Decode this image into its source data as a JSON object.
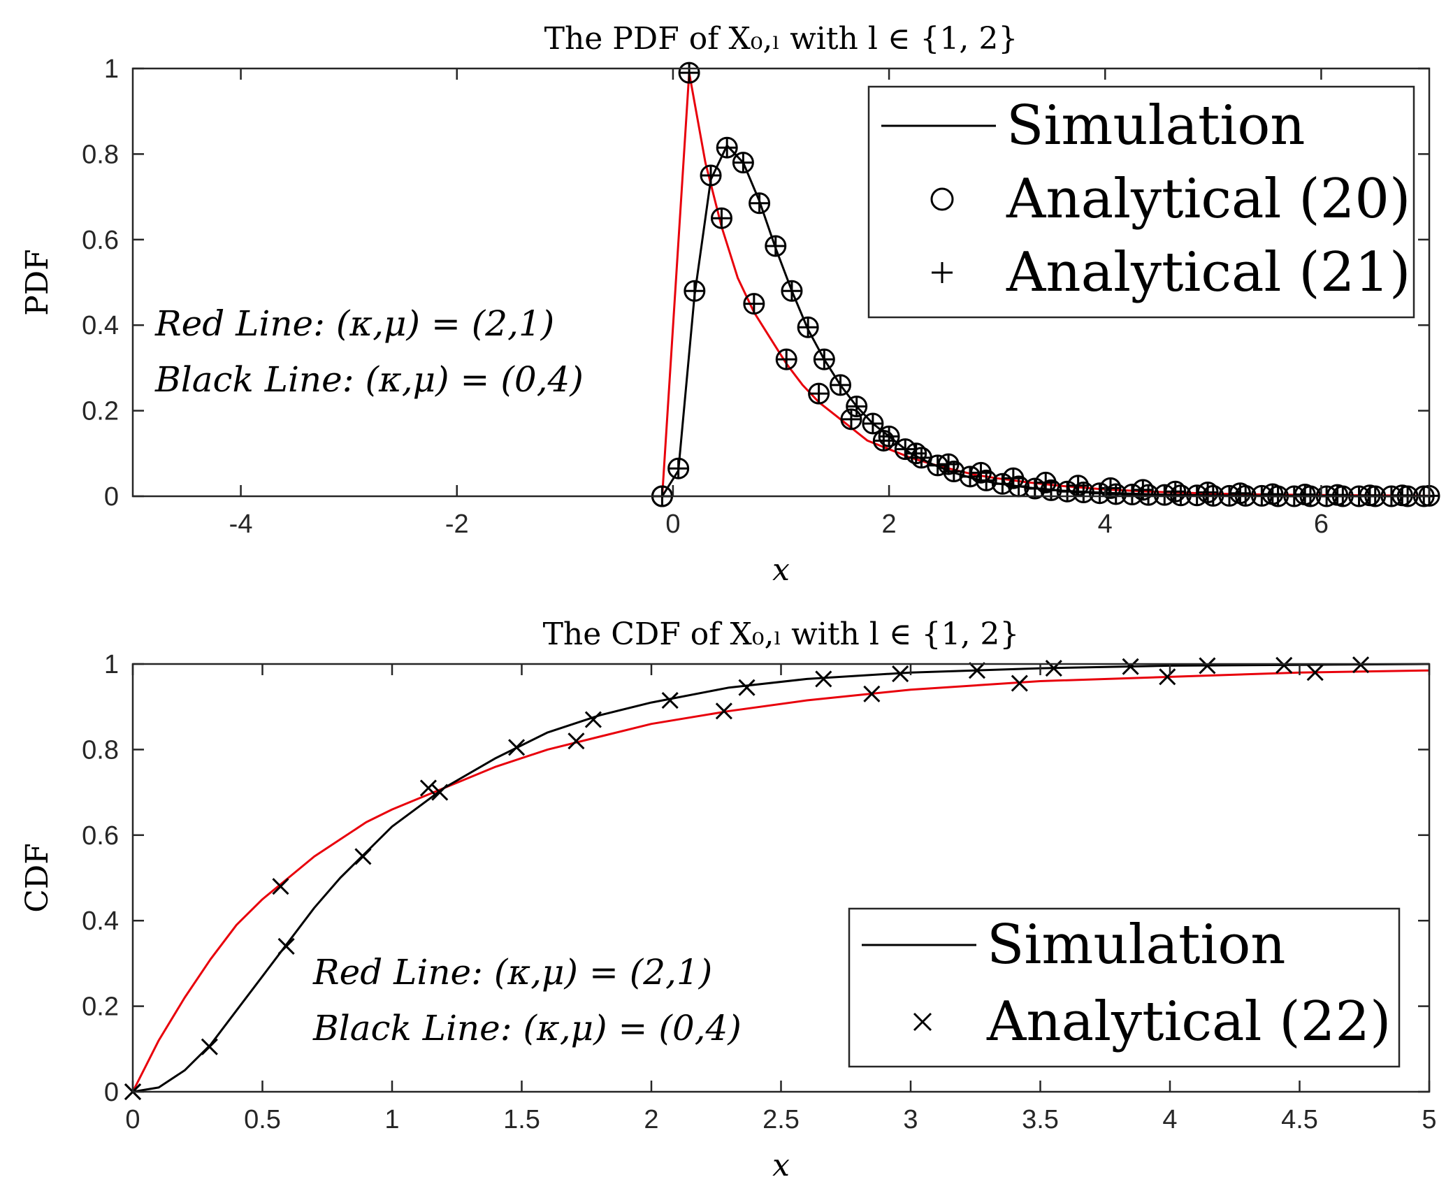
{
  "colors": {
    "red": "#e8000b",
    "black": "#000000",
    "background": "#ffffff"
  },
  "chart_data": [
    {
      "type": "line",
      "title": "The PDF of X₀,ₗ with l ∈ {1, 2}",
      "xlabel": "x",
      "ylabel": "PDF",
      "xlim": [
        -5,
        7
      ],
      "ylim": [
        0,
        1
      ],
      "xticks": [
        -4,
        -2,
        0,
        2,
        4,
        6
      ],
      "xtick_labels": [
        "-4",
        "-2",
        "0",
        "2",
        "4",
        "6"
      ],
      "yticks": [
        0,
        0.2,
        0.4,
        0.6,
        0.8,
        1
      ],
      "ytick_labels": [
        "0",
        "0.2",
        "0.4",
        "0.6",
        "0.8",
        "1"
      ],
      "legend": {
        "placement": "top-right",
        "entries": [
          {
            "label": "Simulation",
            "marker": "line"
          },
          {
            "label": "Analytical (20)",
            "marker": "circle"
          },
          {
            "label": "Analytical (21)",
            "marker": "plus"
          }
        ]
      },
      "annotations": [
        "Red Line: (κ,μ) = (2,1)",
        "Black Line: (κ,μ) = (0,4)"
      ],
      "series": [
        {
          "name": "Red Line (κ,μ)=(2,1)",
          "color": "#e8000b",
          "line_x": [
            -0.1,
            0.15,
            0.3,
            0.45,
            0.6,
            0.75,
            0.9,
            1.05,
            1.2,
            1.35,
            1.5,
            1.65,
            1.8,
            2.0,
            2.2,
            2.4,
            2.6,
            2.8,
            3.0,
            3.3,
            3.6,
            4.0,
            4.5,
            5.0,
            5.5,
            6.0,
            6.5,
            7.0
          ],
          "line_y": [
            0,
            0.99,
            0.78,
            0.63,
            0.51,
            0.43,
            0.37,
            0.31,
            0.26,
            0.22,
            0.19,
            0.16,
            0.13,
            0.11,
            0.09,
            0.075,
            0.062,
            0.05,
            0.042,
            0.032,
            0.024,
            0.016,
            0.01,
            0.006,
            0.004,
            0.003,
            0.002,
            0.001
          ],
          "marker_x": [
            -0.1,
            0.15,
            0.45,
            0.75,
            1.05,
            1.35,
            1.65,
            1.95,
            2.25,
            2.55,
            2.85,
            3.15,
            3.45,
            3.75,
            4.05,
            4.35,
            4.65,
            4.95,
            5.25,
            5.55,
            5.85,
            6.15,
            6.45,
            6.75,
            7.0
          ],
          "marker_y": [
            0,
            0.99,
            0.65,
            0.45,
            0.32,
            0.24,
            0.18,
            0.13,
            0.1,
            0.075,
            0.055,
            0.042,
            0.032,
            0.025,
            0.019,
            0.015,
            0.011,
            0.009,
            0.007,
            0.005,
            0.004,
            0.003,
            0.002,
            0.002,
            0.001
          ]
        },
        {
          "name": "Black Line (κ,μ)=(0,4)",
          "color": "#000000",
          "line_x": [
            -0.1,
            0.05,
            0.2,
            0.35,
            0.5,
            0.65,
            0.8,
            0.95,
            1.1,
            1.25,
            1.4,
            1.55,
            1.7,
            1.85,
            2.0,
            2.2,
            2.4,
            2.6,
            2.8,
            3.0,
            3.3,
            3.6,
            4.0,
            4.5,
            5.0,
            5.5,
            6.0,
            6.5,
            7.0
          ],
          "line_y": [
            0,
            0.06,
            0.47,
            0.74,
            0.82,
            0.78,
            0.69,
            0.58,
            0.48,
            0.39,
            0.32,
            0.26,
            0.21,
            0.17,
            0.14,
            0.1,
            0.075,
            0.055,
            0.04,
            0.03,
            0.02,
            0.013,
            0.008,
            0.004,
            0.002,
            0.001,
            0.001,
            0.0,
            0.0
          ],
          "marker_x": [
            -0.1,
            0.05,
            0.2,
            0.35,
            0.5,
            0.65,
            0.8,
            0.95,
            1.1,
            1.25,
            1.4,
            1.55,
            1.7,
            1.85,
            2.0,
            2.15,
            2.3,
            2.45,
            2.6,
            2.75,
            2.9,
            3.05,
            3.2,
            3.35,
            3.5,
            3.65,
            3.8,
            3.95,
            4.1,
            4.25,
            4.4,
            4.55,
            4.7,
            4.85,
            5.0,
            5.15,
            5.3,
            5.45,
            5.6,
            5.75,
            5.9,
            6.05,
            6.2,
            6.35,
            6.5,
            6.65,
            6.8,
            6.95
          ],
          "marker_y": [
            0,
            0.065,
            0.48,
            0.75,
            0.815,
            0.78,
            0.685,
            0.585,
            0.48,
            0.395,
            0.32,
            0.26,
            0.21,
            0.17,
            0.14,
            0.11,
            0.09,
            0.072,
            0.058,
            0.046,
            0.037,
            0.029,
            0.023,
            0.018,
            0.014,
            0.011,
            0.009,
            0.007,
            0.005,
            0.004,
            0.003,
            0.003,
            0.002,
            0.002,
            0.001,
            0.001,
            0.001,
            0.001,
            0.0,
            0.0,
            0.0,
            0.0,
            0.0,
            0.0,
            0.0,
            0.0,
            0.0,
            0.0
          ]
        }
      ]
    },
    {
      "type": "line",
      "title": "The CDF of X₀,ₗ with l ∈ {1, 2}",
      "xlabel": "x",
      "ylabel": "CDF",
      "xlim": [
        0,
        5
      ],
      "ylim": [
        0,
        1
      ],
      "xticks": [
        0,
        0.5,
        1,
        1.5,
        2,
        2.5,
        3,
        3.5,
        4,
        4.5,
        5
      ],
      "xtick_labels": [
        "0",
        "0.5",
        "1",
        "1.5",
        "2",
        "2.5",
        "3",
        "3.5",
        "4",
        "4.5",
        "5"
      ],
      "yticks": [
        0,
        0.2,
        0.4,
        0.6,
        0.8,
        1
      ],
      "ytick_labels": [
        "0",
        "0.2",
        "0.4",
        "0.6",
        "0.8",
        "1"
      ],
      "legend": {
        "placement": "bottom-right",
        "entries": [
          {
            "label": "Simulation",
            "marker": "line"
          },
          {
            "label": "Analytical (22)",
            "marker": "x"
          }
        ]
      },
      "annotations": [
        "Red Line: (κ,μ) = (2,1)",
        "Black Line: (κ,μ) = (0,4)"
      ],
      "series": [
        {
          "name": "Red Line (κ,μ)=(2,1)",
          "color": "#e8000b",
          "line_x": [
            0,
            0.1,
            0.2,
            0.3,
            0.4,
            0.5,
            0.6,
            0.7,
            0.8,
            0.9,
            1.0,
            1.2,
            1.4,
            1.6,
            1.8,
            2.0,
            2.3,
            2.6,
            3.0,
            3.5,
            4.0,
            4.5,
            5.0
          ],
          "line_y": [
            0,
            0.12,
            0.22,
            0.31,
            0.39,
            0.45,
            0.5,
            0.55,
            0.59,
            0.63,
            0.66,
            0.71,
            0.76,
            0.8,
            0.83,
            0.86,
            0.89,
            0.915,
            0.94,
            0.96,
            0.97,
            0.98,
            0.985
          ],
          "marker_x": [
            0,
            0.57,
            1.14,
            1.71,
            2.28,
            2.85,
            3.42,
            3.99,
            4.56
          ],
          "marker_y": [
            0,
            0.48,
            0.71,
            0.82,
            0.89,
            0.93,
            0.955,
            0.97,
            0.98
          ]
        },
        {
          "name": "Black Line (κ,μ)=(0,4)",
          "color": "#000000",
          "line_x": [
            0,
            0.1,
            0.2,
            0.3,
            0.4,
            0.5,
            0.6,
            0.7,
            0.8,
            0.9,
            1.0,
            1.2,
            1.4,
            1.6,
            1.8,
            2.0,
            2.3,
            2.6,
            3.0,
            3.5,
            4.0,
            4.5,
            5.0
          ],
          "line_y": [
            0,
            0.01,
            0.05,
            0.11,
            0.19,
            0.27,
            0.35,
            0.43,
            0.5,
            0.56,
            0.62,
            0.71,
            0.78,
            0.84,
            0.88,
            0.91,
            0.945,
            0.965,
            0.98,
            0.99,
            0.996,
            0.998,
            1.0
          ],
          "marker_x": [
            0,
            0.296,
            0.592,
            0.888,
            1.184,
            1.48,
            1.776,
            2.072,
            2.368,
            2.664,
            2.96,
            3.256,
            3.552,
            3.848,
            4.144,
            4.44,
            4.736
          ],
          "marker_y": [
            0,
            0.105,
            0.34,
            0.55,
            0.7,
            0.805,
            0.87,
            0.915,
            0.945,
            0.965,
            0.977,
            0.985,
            0.99,
            0.994,
            0.996,
            0.997,
            0.998
          ]
        }
      ]
    }
  ]
}
